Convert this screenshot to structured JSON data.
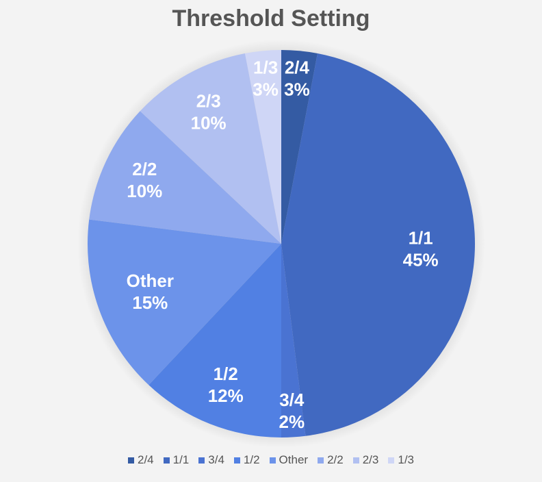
{
  "chart_data": {
    "type": "pie",
    "title": "Threshold Setting",
    "legend_position": "bottom",
    "slices": [
      {
        "label": "2/4",
        "value": 3,
        "pct_label": "3%",
        "color": "#345ba3"
      },
      {
        "label": "1/1",
        "value": 45,
        "pct_label": "45%",
        "color": "#4169c1"
      },
      {
        "label": "3/4",
        "value": 2,
        "pct_label": "2%",
        "color": "#4a73d2"
      },
      {
        "label": "1/2",
        "value": 12,
        "pct_label": "12%",
        "color": "#5180e3"
      },
      {
        "label": "Other",
        "value": 15,
        "pct_label": "15%",
        "color": "#6c93ea"
      },
      {
        "label": "2/2",
        "value": 10,
        "pct_label": "10%",
        "color": "#8fa9ee"
      },
      {
        "label": "2/3",
        "value": 10,
        "pct_label": "10%",
        "color": "#b1c0f1"
      },
      {
        "label": "1/3",
        "value": 3,
        "pct_label": "3%",
        "color": "#cfd6f6"
      }
    ]
  }
}
